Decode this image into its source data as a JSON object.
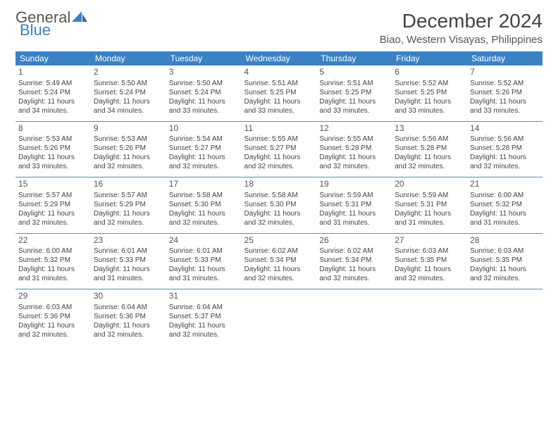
{
  "logo": {
    "text1": "General",
    "text2": "Blue"
  },
  "title": "December 2024",
  "location": "Biao, Western Visayas, Philippines",
  "colors": {
    "header_bg": "#3b82c4",
    "header_text": "#ffffff",
    "row_border": "#6a8aa8",
    "text": "#444444",
    "logo_gray": "#555555",
    "logo_blue": "#3b82c4"
  },
  "day_headers": [
    "Sunday",
    "Monday",
    "Tuesday",
    "Wednesday",
    "Thursday",
    "Friday",
    "Saturday"
  ],
  "weeks": [
    [
      {
        "n": "1",
        "sr": "5:49 AM",
        "ss": "5:24 PM",
        "dl": "11 hours and 34 minutes."
      },
      {
        "n": "2",
        "sr": "5:50 AM",
        "ss": "5:24 PM",
        "dl": "11 hours and 34 minutes."
      },
      {
        "n": "3",
        "sr": "5:50 AM",
        "ss": "5:24 PM",
        "dl": "11 hours and 33 minutes."
      },
      {
        "n": "4",
        "sr": "5:51 AM",
        "ss": "5:25 PM",
        "dl": "11 hours and 33 minutes."
      },
      {
        "n": "5",
        "sr": "5:51 AM",
        "ss": "5:25 PM",
        "dl": "11 hours and 33 minutes."
      },
      {
        "n": "6",
        "sr": "5:52 AM",
        "ss": "5:25 PM",
        "dl": "11 hours and 33 minutes."
      },
      {
        "n": "7",
        "sr": "5:52 AM",
        "ss": "5:26 PM",
        "dl": "11 hours and 33 minutes."
      }
    ],
    [
      {
        "n": "8",
        "sr": "5:53 AM",
        "ss": "5:26 PM",
        "dl": "11 hours and 33 minutes."
      },
      {
        "n": "9",
        "sr": "5:53 AM",
        "ss": "5:26 PM",
        "dl": "11 hours and 32 minutes."
      },
      {
        "n": "10",
        "sr": "5:54 AM",
        "ss": "5:27 PM",
        "dl": "11 hours and 32 minutes."
      },
      {
        "n": "11",
        "sr": "5:55 AM",
        "ss": "5:27 PM",
        "dl": "11 hours and 32 minutes."
      },
      {
        "n": "12",
        "sr": "5:55 AM",
        "ss": "5:28 PM",
        "dl": "11 hours and 32 minutes."
      },
      {
        "n": "13",
        "sr": "5:56 AM",
        "ss": "5:28 PM",
        "dl": "11 hours and 32 minutes."
      },
      {
        "n": "14",
        "sr": "5:56 AM",
        "ss": "5:28 PM",
        "dl": "11 hours and 32 minutes."
      }
    ],
    [
      {
        "n": "15",
        "sr": "5:57 AM",
        "ss": "5:29 PM",
        "dl": "11 hours and 32 minutes."
      },
      {
        "n": "16",
        "sr": "5:57 AM",
        "ss": "5:29 PM",
        "dl": "11 hours and 32 minutes."
      },
      {
        "n": "17",
        "sr": "5:58 AM",
        "ss": "5:30 PM",
        "dl": "11 hours and 32 minutes."
      },
      {
        "n": "18",
        "sr": "5:58 AM",
        "ss": "5:30 PM",
        "dl": "11 hours and 32 minutes."
      },
      {
        "n": "19",
        "sr": "5:59 AM",
        "ss": "5:31 PM",
        "dl": "11 hours and 31 minutes."
      },
      {
        "n": "20",
        "sr": "5:59 AM",
        "ss": "5:31 PM",
        "dl": "11 hours and 31 minutes."
      },
      {
        "n": "21",
        "sr": "6:00 AM",
        "ss": "5:32 PM",
        "dl": "11 hours and 31 minutes."
      }
    ],
    [
      {
        "n": "22",
        "sr": "6:00 AM",
        "ss": "5:32 PM",
        "dl": "11 hours and 31 minutes."
      },
      {
        "n": "23",
        "sr": "6:01 AM",
        "ss": "5:33 PM",
        "dl": "11 hours and 31 minutes."
      },
      {
        "n": "24",
        "sr": "6:01 AM",
        "ss": "5:33 PM",
        "dl": "11 hours and 31 minutes."
      },
      {
        "n": "25",
        "sr": "6:02 AM",
        "ss": "5:34 PM",
        "dl": "11 hours and 32 minutes."
      },
      {
        "n": "26",
        "sr": "6:02 AM",
        "ss": "5:34 PM",
        "dl": "11 hours and 32 minutes."
      },
      {
        "n": "27",
        "sr": "6:03 AM",
        "ss": "5:35 PM",
        "dl": "11 hours and 32 minutes."
      },
      {
        "n": "28",
        "sr": "6:03 AM",
        "ss": "5:35 PM",
        "dl": "11 hours and 32 minutes."
      }
    ],
    [
      {
        "n": "29",
        "sr": "6:03 AM",
        "ss": "5:36 PM",
        "dl": "11 hours and 32 minutes."
      },
      {
        "n": "30",
        "sr": "6:04 AM",
        "ss": "5:36 PM",
        "dl": "11 hours and 32 minutes."
      },
      {
        "n": "31",
        "sr": "6:04 AM",
        "ss": "5:37 PM",
        "dl": "11 hours and 32 minutes."
      },
      null,
      null,
      null,
      null
    ]
  ],
  "labels": {
    "sunrise": "Sunrise:",
    "sunset": "Sunset:",
    "daylight": "Daylight:"
  }
}
